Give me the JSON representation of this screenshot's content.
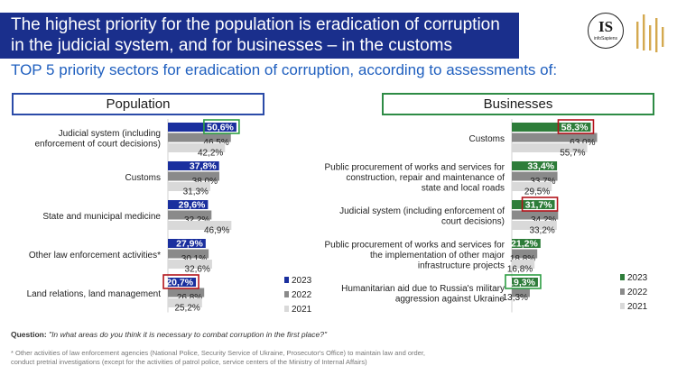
{
  "title": {
    "line1": "The highest priority for the population is eradication of corruption",
    "line2": "in the judicial system, and for businesses – in the customs"
  },
  "subtitle": "TOP 5 priority sectors for eradication of corruption, according to assessments of:",
  "logo": {
    "initials": "IS",
    "caption": "infoSapiens"
  },
  "question": {
    "label": "Question:",
    "text": "\"In what areas do you think it is necessary to combat corruption in the first place?\""
  },
  "footnote": {
    "line1": "* Other activities of law enforcement agencies (National Police, Security Service of Ukraine, Prosecutor's Office) to maintain law and order,",
    "line2": "conduct pretrial investigations (except for the activities of patrol police, service centers of the Ministry of Internal Affairs)"
  },
  "colors": {
    "title_bg": "#1a2f8c",
    "subtitle": "#1f5fbf",
    "pop_2023": "#1a2f9e",
    "biz_2023": "#2e7d3a",
    "y2022": "#8a8a8a",
    "y2021": "#d9d9d9",
    "highlight_green": "#2e9e44",
    "highlight_red": "#b3141c"
  },
  "chart_data": [
    {
      "type": "bar",
      "orientation": "horizontal",
      "title": "Population",
      "categories": [
        [
          "Judicial system (including",
          "enforcement of court decisions)"
        ],
        [
          "Customs"
        ],
        [
          "State and municipal medicine"
        ],
        [
          "Other law enforcement activities*"
        ],
        [
          "Land relations, land management"
        ]
      ],
      "series": [
        {
          "name": "2023",
          "values": [
            50.6,
            37.8,
            29.6,
            27.9,
            20.7
          ],
          "labels": [
            "50,6%",
            "37,8%",
            "29,6%",
            "27,9%",
            "20,7%"
          ]
        },
        {
          "name": "2022",
          "values": [
            46.5,
            38.0,
            32.2,
            30.1,
            26.8
          ],
          "labels": [
            "46,5%",
            "38,0%",
            "32,2%",
            "30,1%",
            "26,8%"
          ]
        },
        {
          "name": "2021",
          "values": [
            42.2,
            31.3,
            46.9,
            32.6,
            25.2
          ],
          "labels": [
            "42,2%",
            "31,3%",
            "46,9%",
            "32,6%",
            "25,2%"
          ]
        }
      ],
      "highlights": [
        {
          "category_index": 0,
          "color": "green"
        },
        {
          "category_index": 4,
          "color": "red"
        }
      ],
      "legend": [
        "2023",
        "2022",
        "2021"
      ],
      "legend_position": "bottom-right",
      "xlim": [
        0,
        100
      ]
    },
    {
      "type": "bar",
      "orientation": "horizontal",
      "title": "Businesses",
      "categories": [
        [
          "Customs"
        ],
        [
          "Public procurement of works and services for",
          "construction, repair and maintenance of",
          "state and local roads"
        ],
        [
          "Judicial system (including enforcement of",
          "court decisions)"
        ],
        [
          "Public procurement of works and services for",
          "the implementation of other major",
          "infrastructure projects"
        ],
        [
          "Humanitarian aid due to Russia's military",
          "aggression against Ukraine"
        ]
      ],
      "series": [
        {
          "name": "2023",
          "values": [
            58.3,
            33.4,
            31.7,
            21.2,
            19.3
          ],
          "labels": [
            "58,3%",
            "33,4%",
            "31,7%",
            "21,2%",
            "19,3%"
          ]
        },
        {
          "name": "2022",
          "values": [
            63.0,
            33.7,
            34.2,
            18.8,
            13.3
          ],
          "labels": [
            "63,0%",
            "33,7%",
            "34,2%",
            "18,8%",
            "13,3%"
          ]
        },
        {
          "name": "2021",
          "values": [
            55.7,
            29.5,
            33.2,
            16.8,
            null
          ],
          "labels": [
            "55,7%",
            "29,5%",
            "33,2%",
            "16,8%",
            ""
          ]
        }
      ],
      "highlights": [
        {
          "category_index": 0,
          "color": "red"
        },
        {
          "category_index": 2,
          "color": "red"
        },
        {
          "category_index": 4,
          "color": "green"
        }
      ],
      "legend": [
        "2023",
        "2022",
        "2021"
      ],
      "legend_position": "bottom-right",
      "xlim": [
        0,
        100
      ]
    }
  ]
}
